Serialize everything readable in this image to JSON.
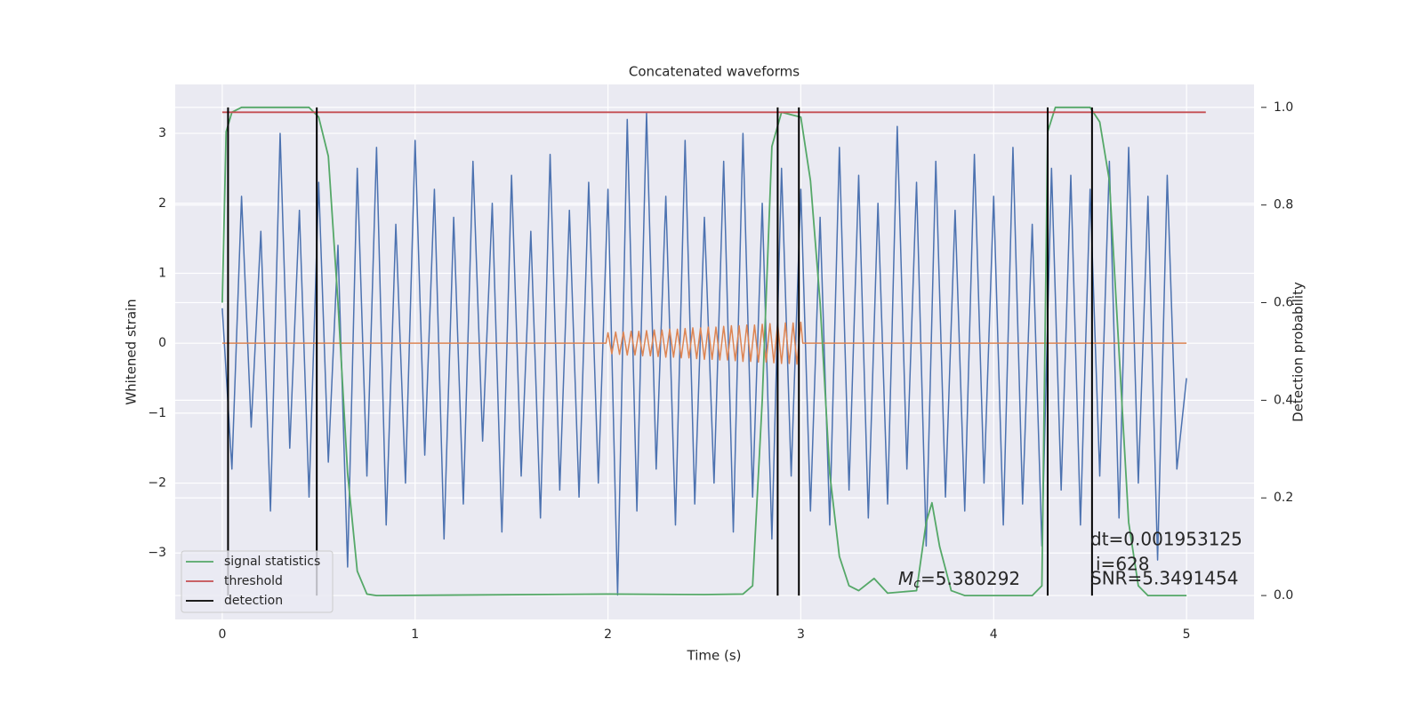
{
  "chart_data": {
    "type": "line",
    "title": "Concatenated waveforms",
    "xlabel": "Time (s)",
    "ylabel": "Whitened strain",
    "y2label": "Detection probability",
    "xlim": [
      -0.244,
      5.35
    ],
    "xticks": [
      0,
      1,
      2,
      3,
      4,
      5
    ],
    "ylim": [
      -3.95,
      3.7
    ],
    "yticks": [
      {
        "value": -3,
        "label": "−3"
      },
      {
        "value": -2,
        "label": "−2"
      },
      {
        "value": -1,
        "label": "−1"
      },
      0,
      1,
      2,
      3
    ],
    "y2lim": [
      -0.049,
      1.047
    ],
    "y2ticks": [
      {
        "value": 0,
        "label": "0.0"
      },
      0.2,
      0.4,
      0.6,
      0.8,
      {
        "value": 1,
        "label": "1.0"
      }
    ],
    "grid": true,
    "legend": "lower left",
    "series": [
      {
        "color": "#4c72b0",
        "x": [
          0,
          0.05,
          0.1,
          0.15,
          0.2,
          0.25,
          0.3,
          0.35,
          0.4,
          0.45,
          0.5,
          0.55,
          0.6,
          0.65,
          0.7,
          0.75,
          0.8,
          0.85,
          0.9,
          0.95,
          1,
          1.05,
          1.1,
          1.15,
          1.2,
          1.25,
          1.3,
          1.35,
          1.4,
          1.45,
          1.5,
          1.55,
          1.6,
          1.65,
          1.7,
          1.75,
          1.8,
          1.85,
          1.9,
          1.95,
          2,
          2.05,
          2.1,
          2.15,
          2.2,
          2.25,
          2.3,
          2.35,
          2.4,
          2.45,
          2.5,
          2.55,
          2.6,
          2.65,
          2.7,
          2.75,
          2.8,
          2.85,
          2.9,
          2.95,
          3,
          3.05,
          3.1,
          3.15,
          3.2,
          3.25,
          3.3,
          3.35,
          3.4,
          3.45,
          3.5,
          3.55,
          3.6,
          3.65,
          3.7,
          3.75,
          3.8,
          3.85,
          3.9,
          3.95,
          4,
          4.05,
          4.1,
          4.15,
          4.2,
          4.25,
          4.3,
          4.35,
          4.4,
          4.45,
          4.5,
          4.55,
          4.6,
          4.65,
          4.7,
          4.75,
          4.8,
          4.85,
          4.9,
          4.95,
          5
        ],
        "values": [
          0.5,
          -1.8,
          2.1,
          -1.2,
          1.6,
          -2.4,
          3.0,
          -1.5,
          1.9,
          -2.2,
          2.3,
          -1.7,
          1.4,
          -3.2,
          2.5,
          -1.9,
          2.8,
          -2.6,
          1.7,
          -2.0,
          2.9,
          -1.6,
          2.2,
          -2.8,
          1.8,
          -2.3,
          2.6,
          -1.4,
          2.0,
          -2.7,
          2.4,
          -1.9,
          1.6,
          -2.5,
          2.7,
          -2.1,
          1.9,
          -2.2,
          2.3,
          -2.0,
          2.2,
          -3.6,
          3.2,
          -2.4,
          3.3,
          -1.8,
          2.1,
          -2.6,
          2.9,
          -2.3,
          1.8,
          -2.0,
          2.6,
          -2.7,
          3.0,
          -2.2,
          2.0,
          -2.8,
          2.5,
          -1.9,
          2.2,
          -2.4,
          1.8,
          -2.6,
          2.8,
          -2.1,
          2.4,
          -2.5,
          2.0,
          -2.3,
          3.1,
          -1.8,
          2.3,
          -2.9,
          2.6,
          -2.2,
          1.9,
          -2.4,
          2.7,
          -2.0,
          2.1,
          -2.6,
          2.8,
          -2.3,
          1.7,
          -2.9,
          2.5,
          -2.1,
          2.4,
          -2.6,
          2.2,
          -1.9,
          2.6,
          -2.5,
          2.8,
          -2.0,
          2.1,
          -3.1,
          2.4,
          -1.8,
          -0.5
        ]
      },
      {
        "color": "#dd8452",
        "x": [
          0,
          1.99,
          2,
          2.02,
          2.04,
          2.06,
          2.08,
          2.1,
          2.12,
          2.14,
          2.16,
          2.18,
          2.2,
          2.22,
          2.24,
          2.26,
          2.28,
          2.3,
          2.32,
          2.34,
          2.36,
          2.38,
          2.4,
          2.42,
          2.44,
          2.46,
          2.48,
          2.5,
          2.52,
          2.54,
          2.56,
          2.58,
          2.6,
          2.62,
          2.64,
          2.66,
          2.68,
          2.7,
          2.72,
          2.74,
          2.76,
          2.78,
          2.8,
          2.82,
          2.84,
          2.86,
          2.88,
          2.9,
          2.92,
          2.94,
          2.96,
          2.98,
          3,
          3.01,
          5
        ],
        "values": [
          0,
          0,
          0.15,
          -0.15,
          0.16,
          -0.16,
          0.16,
          -0.17,
          0.17,
          -0.17,
          0.17,
          -0.18,
          0.18,
          -0.18,
          0.19,
          -0.19,
          0.19,
          -0.2,
          0.2,
          -0.2,
          0.2,
          -0.21,
          0.21,
          -0.21,
          0.22,
          -0.22,
          0.22,
          -0.23,
          0.23,
          -0.23,
          0.23,
          -0.24,
          0.24,
          -0.24,
          0.25,
          -0.25,
          0.25,
          -0.26,
          0.26,
          -0.26,
          0.26,
          -0.27,
          0.27,
          -0.27,
          0.28,
          -0.28,
          0.28,
          -0.29,
          0.29,
          -0.29,
          0.29,
          -0.3,
          0.3,
          0,
          0
        ]
      },
      {
        "name": "signal statistics",
        "color": "#55a868",
        "axis": "y2",
        "x": [
          0,
          0.02,
          0.05,
          0.1,
          0.45,
          0.5,
          0.55,
          0.6,
          0.65,
          0.7,
          0.75,
          0.8,
          2.0,
          2.5,
          2.7,
          2.75,
          2.8,
          2.85,
          2.9,
          3.0,
          3.05,
          3.1,
          3.15,
          3.2,
          3.25,
          3.3,
          3.38,
          3.45,
          3.6,
          3.65,
          3.68,
          3.72,
          3.78,
          3.85,
          4.2,
          4.25,
          4.28,
          4.32,
          4.5,
          4.55,
          4.6,
          4.65,
          4.7,
          4.75,
          4.8,
          5.0
        ],
        "values": [
          0.6,
          0.95,
          0.99,
          1.0,
          1.0,
          0.98,
          0.9,
          0.6,
          0.25,
          0.05,
          0.003,
          0.0,
          0.003,
          0.002,
          0.003,
          0.02,
          0.4,
          0.92,
          0.99,
          0.98,
          0.85,
          0.6,
          0.25,
          0.08,
          0.02,
          0.01,
          0.035,
          0.005,
          0.01,
          0.15,
          0.19,
          0.1,
          0.01,
          0.0,
          0.0,
          0.02,
          0.95,
          1.0,
          1.0,
          0.97,
          0.85,
          0.5,
          0.15,
          0.02,
          0.0,
          0.0
        ]
      },
      {
        "name": "threshold",
        "color": "#c44e52",
        "axis": "y2",
        "x": [
          0,
          5.1
        ],
        "values": [
          0.99,
          0.99
        ]
      }
    ],
    "detections": {
      "name": "detection",
      "color": "#000000",
      "axis": "y2",
      "x": [
        0.03,
        0.49,
        2.88,
        2.99,
        4.28,
        4.51
      ],
      "ymin": 0,
      "ymax": 1
    },
    "annotations": {
      "dt": "dt=0.001953125",
      "i": "i=628",
      "snr": "SNR=5.3491454",
      "mc": {
        "symbol": "M",
        "subscript": "c",
        "text": "=5.380292"
      }
    }
  }
}
